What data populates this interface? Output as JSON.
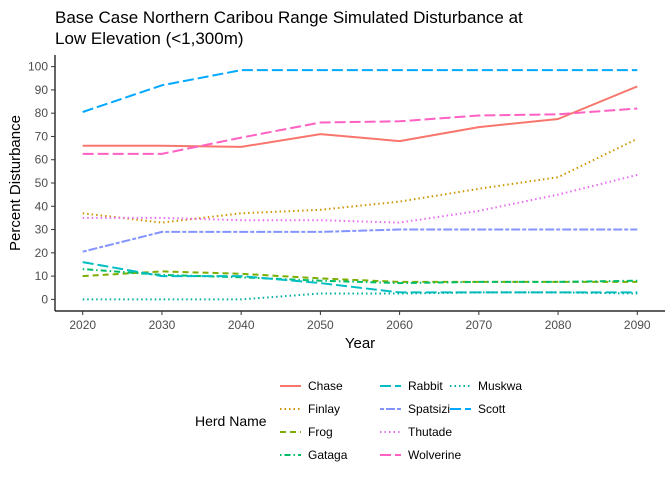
{
  "chart_data": {
    "type": "line",
    "title": [
      "Base Case Northern Caribou Range Simulated Disturbance at",
      "Low Elevation (<1,300m)"
    ],
    "xlabel": "Year",
    "ylabel": "Percent Disturbance",
    "x": [
      2020,
      2030,
      2040,
      2050,
      2060,
      2070,
      2080,
      2090
    ],
    "xlim": [
      2016.5,
      2093.5
    ],
    "ylim": [
      -5,
      105
    ],
    "xticks": [
      "2020",
      "2030",
      "2040",
      "2050",
      "2060",
      "2070",
      "2080",
      "2090"
    ],
    "yticks": [
      "0",
      "10",
      "20",
      "30",
      "40",
      "50",
      "60",
      "70",
      "80",
      "90",
      "100"
    ],
    "grid": false,
    "legend": {
      "title": "Herd Name",
      "placement": "bottom"
    },
    "series": [
      {
        "name": "Chase",
        "color": "#F8766D",
        "dash": "solid",
        "values": [
          66,
          66,
          65.5,
          71,
          68,
          74,
          77.5,
          91.5
        ]
      },
      {
        "name": "Finlay",
        "color": "#CD9600",
        "dash": "dotted",
        "values": [
          37,
          33,
          37,
          38.5,
          42,
          47.5,
          52.5,
          69
        ]
      },
      {
        "name": "Frog",
        "color": "#7CAE00",
        "dash": "dashed",
        "values": [
          10,
          12,
          11,
          9,
          7.5,
          7.5,
          7.5,
          7.5
        ]
      },
      {
        "name": "Gataga",
        "color": "#00BE67",
        "dash": "dotdash",
        "values": [
          13,
          10.5,
          9.5,
          8,
          7,
          7.5,
          7.5,
          8
        ]
      },
      {
        "name": "Rabbit",
        "color": "#00BFC4",
        "dash": "longdash",
        "values": [
          16,
          10,
          10,
          7,
          3,
          3,
          3,
          3
        ]
      },
      {
        "name": "Spatsizi",
        "color": "#8494FF",
        "dash": "twodash",
        "values": [
          20.5,
          29,
          29,
          29,
          30,
          30,
          30,
          30
        ]
      },
      {
        "name": "Thutade",
        "color": "#E76BF3",
        "dash": "dotted",
        "values": [
          35,
          35,
          34,
          34,
          33,
          38,
          45,
          53.5
        ]
      },
      {
        "name": "Wolverine",
        "color": "#FF61C3",
        "dash": "longdash",
        "values": [
          62.5,
          62.5,
          69.5,
          76,
          76.5,
          79,
          79.5,
          82
        ]
      },
      {
        "name": "Muskwa",
        "color": "#00B0A0",
        "dash": "dotted",
        "values": [
          0,
          0,
          0,
          2.5,
          2.5,
          3,
          3,
          2.5
        ]
      },
      {
        "name": "Scott",
        "color": "#00A9FF",
        "dash": "longdash",
        "values": [
          80.5,
          92,
          98.5,
          98.5,
          98.5,
          98.5,
          98.5,
          98.5
        ]
      }
    ]
  }
}
